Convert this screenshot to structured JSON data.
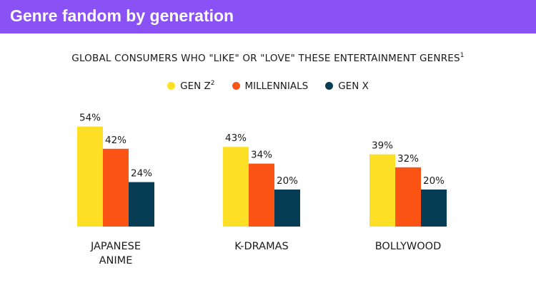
{
  "header": {
    "title": "Genre fandom by generation"
  },
  "chart_data": {
    "type": "bar",
    "title": "GLOBAL CONSUMERS WHO \"LIKE\" OR \"LOVE\" THESE ENTERTAINMENT GENRES",
    "title_superscript": "1",
    "categories": [
      [
        "JAPANESE",
        "ANIME"
      ],
      [
        "K-DRAMAS"
      ],
      [
        "BOLLYWOOD"
      ]
    ],
    "series": [
      {
        "name": "GEN Z",
        "superscript": "2",
        "color": "#fde025",
        "values": [
          54,
          43,
          39
        ]
      },
      {
        "name": "MILLENNIALS",
        "superscript": "",
        "color": "#fb5414",
        "values": [
          42,
          34,
          32
        ]
      },
      {
        "name": "GEN X",
        "superscript": "",
        "color": "#063d54",
        "values": [
          24,
          20,
          20
        ]
      }
    ],
    "value_suffix": "%",
    "ylim": [
      0,
      60
    ],
    "grid": false,
    "legend_position": "top-center"
  }
}
